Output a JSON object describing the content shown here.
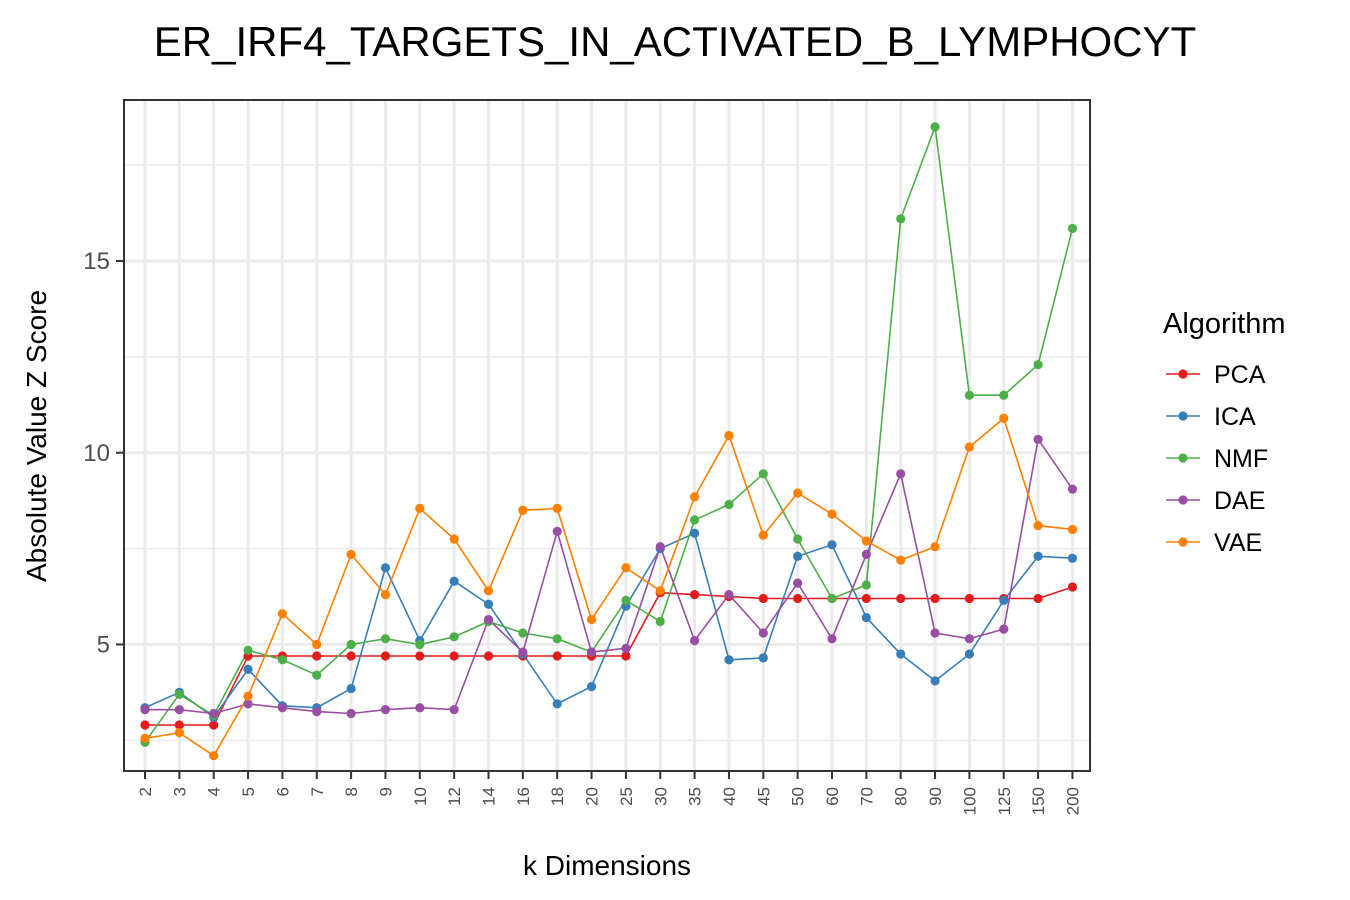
{
  "chart_data": {
    "type": "line",
    "title": "ER_IRF4_TARGETS_IN_ACTIVATED_B_LYMPHOCYT",
    "xlabel": "k Dimensions",
    "ylabel": "Absolute Value Z Score",
    "categories": [
      "2",
      "3",
      "4",
      "5",
      "6",
      "7",
      "8",
      "9",
      "10",
      "12",
      "14",
      "16",
      "18",
      "20",
      "25",
      "30",
      "35",
      "40",
      "45",
      "50",
      "60",
      "70",
      "80",
      "90",
      "100",
      "125",
      "150",
      "200"
    ],
    "y_ticks": [
      5,
      10,
      15
    ],
    "ylim": [
      1.7,
      19.2
    ],
    "grid": true,
    "legend": {
      "title": "Algorithm",
      "position": "right"
    },
    "series": [
      {
        "name": "PCA",
        "color": "#E41A1C",
        "values": [
          2.9,
          2.9,
          2.9,
          4.7,
          4.7,
          4.7,
          4.7,
          4.7,
          4.7,
          4.7,
          4.7,
          4.7,
          4.7,
          4.7,
          4.7,
          6.35,
          6.3,
          6.25,
          6.2,
          6.2,
          6.2,
          6.2,
          6.2,
          6.2,
          6.2,
          6.2,
          6.2,
          6.5
        ]
      },
      {
        "name": "ICA",
        "color": "#377EB8",
        "values": [
          3.35,
          3.75,
          3.1,
          4.35,
          3.4,
          3.35,
          3.85,
          7.0,
          5.1,
          6.65,
          6.05,
          4.75,
          3.45,
          3.9,
          6.0,
          7.5,
          7.9,
          4.6,
          4.65,
          7.3,
          7.6,
          5.7,
          4.75,
          4.05,
          4.75,
          6.15,
          7.3,
          7.25
        ]
      },
      {
        "name": "NMF",
        "color": "#4DAF4A",
        "values": [
          2.45,
          3.7,
          3.15,
          4.85,
          4.6,
          4.2,
          5.0,
          5.15,
          5.0,
          5.2,
          5.6,
          5.3,
          5.15,
          4.8,
          6.15,
          5.6,
          8.25,
          8.65,
          9.45,
          7.75,
          6.2,
          6.55,
          16.1,
          18.5,
          11.5,
          11.5,
          12.3,
          15.85
        ]
      },
      {
        "name": "DAE",
        "color": "#984EA3",
        "values": [
          3.3,
          3.3,
          3.2,
          3.45,
          3.35,
          3.25,
          3.2,
          3.3,
          3.35,
          3.3,
          5.65,
          4.8,
          7.95,
          4.8,
          4.9,
          7.55,
          5.1,
          6.3,
          5.3,
          6.6,
          5.15,
          7.35,
          9.45,
          5.3,
          5.15,
          5.4,
          10.35,
          9.05
        ]
      },
      {
        "name": "VAE",
        "color": "#FF7F00",
        "values": [
          2.55,
          2.7,
          2.1,
          3.65,
          5.8,
          5.0,
          7.35,
          6.3,
          8.55,
          7.75,
          6.4,
          8.5,
          8.55,
          5.65,
          7.0,
          6.4,
          8.85,
          10.45,
          7.85,
          8.95,
          8.4,
          7.7,
          7.2,
          7.55,
          10.15,
          10.9,
          8.1,
          8.0
        ]
      }
    ]
  }
}
